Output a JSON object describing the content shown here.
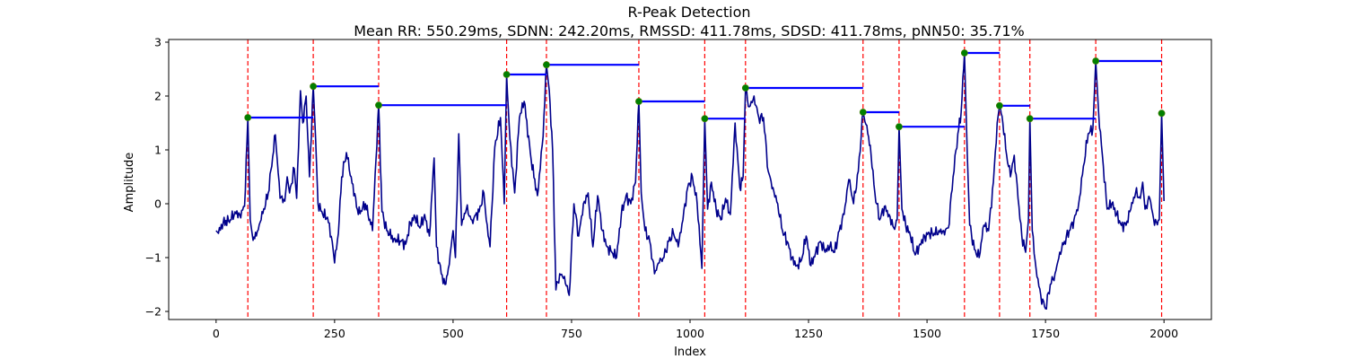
{
  "chart_data": {
    "type": "line",
    "title": "R-Peak Detection",
    "subtitle": "Mean RR: 550.29ms, SDNN: 242.20ms, RMSSD: 411.78ms, SDSD: 411.78ms, pNN50: 35.71%",
    "xlabel": "Index",
    "ylabel": "Amplitude",
    "xlim": [
      -100,
      2100
    ],
    "ylim": [
      -2.15,
      3.05
    ],
    "xticks": [
      0,
      250,
      500,
      750,
      1000,
      1250,
      1500,
      1750,
      2000
    ],
    "yticks": [
      -2,
      -1,
      0,
      1,
      2,
      3
    ],
    "grid": false,
    "colors": {
      "signal": "#00008b",
      "peak_lines": "#ff0000",
      "peak_markers": "#008000",
      "rr_segments": "#0000ff"
    },
    "signal_keypoints": [
      [
        0,
        -0.5
      ],
      [
        5,
        -0.55
      ],
      [
        15,
        -0.35
      ],
      [
        30,
        -0.3
      ],
      [
        40,
        -0.15
      ],
      [
        50,
        -0.2
      ],
      [
        60,
        -0.05
      ],
      [
        67,
        1.6
      ],
      [
        72,
        -0.3
      ],
      [
        78,
        -0.68
      ],
      [
        85,
        -0.6
      ],
      [
        95,
        -0.3
      ],
      [
        110,
        0.2
      ],
      [
        125,
        1.28
      ],
      [
        135,
        0.1
      ],
      [
        145,
        0.05
      ],
      [
        150,
        0.5
      ],
      [
        155,
        0.2
      ],
      [
        165,
        0.65
      ],
      [
        170,
        0.1
      ],
      [
        178,
        2.1
      ],
      [
        183,
        1.5
      ],
      [
        190,
        2.0
      ],
      [
        197,
        0.5
      ],
      [
        205,
        2.18
      ],
      [
        210,
        1.2
      ],
      [
        215,
        0.0
      ],
      [
        225,
        -0.2
      ],
      [
        235,
        -0.25
      ],
      [
        245,
        -0.7
      ],
      [
        250,
        -1.1
      ],
      [
        258,
        -0.55
      ],
      [
        265,
        0.5
      ],
      [
        275,
        0.95
      ],
      [
        285,
        0.5
      ],
      [
        300,
        -0.2
      ],
      [
        315,
        0.0
      ],
      [
        330,
        -0.5
      ],
      [
        343,
        1.83
      ],
      [
        350,
        -0.15
      ],
      [
        360,
        -0.5
      ],
      [
        375,
        -0.65
      ],
      [
        390,
        -0.7
      ],
      [
        400,
        -0.75
      ],
      [
        410,
        -0.35
      ],
      [
        420,
        -0.25
      ],
      [
        430,
        -0.45
      ],
      [
        440,
        -0.2
      ],
      [
        450,
        -0.6
      ],
      [
        460,
        0.85
      ],
      [
        465,
        -0.8
      ],
      [
        475,
        -1.3
      ],
      [
        483,
        -1.5
      ],
      [
        490,
        -1.2
      ],
      [
        500,
        -0.5
      ],
      [
        505,
        -1.0
      ],
      [
        512,
        1.3
      ],
      [
        518,
        -0.4
      ],
      [
        528,
        -0.1
      ],
      [
        540,
        -0.3
      ],
      [
        555,
        -0.15
      ],
      [
        565,
        0.2
      ],
      [
        570,
        -0.3
      ],
      [
        578,
        -0.8
      ],
      [
        588,
        1.05
      ],
      [
        600,
        1.6
      ],
      [
        608,
        0.0
      ],
      [
        613,
        2.4
      ],
      [
        620,
        1.2
      ],
      [
        630,
        0.2
      ],
      [
        640,
        1.6
      ],
      [
        650,
        1.9
      ],
      [
        665,
        0.8
      ],
      [
        678,
        0.15
      ],
      [
        690,
        1.25
      ],
      [
        697,
        2.58
      ],
      [
        703,
        2.1
      ],
      [
        710,
        1.0
      ],
      [
        717,
        -1.6
      ],
      [
        725,
        -1.3
      ],
      [
        735,
        -1.35
      ],
      [
        745,
        -1.7
      ],
      [
        755,
        0.0
      ],
      [
        765,
        -0.6
      ],
      [
        775,
        0.0
      ],
      [
        785,
        0.2
      ],
      [
        795,
        -0.8
      ],
      [
        805,
        0.15
      ],
      [
        815,
        -0.5
      ],
      [
        825,
        -0.8
      ],
      [
        835,
        -0.9
      ],
      [
        845,
        -1.0
      ],
      [
        855,
        -0.2
      ],
      [
        865,
        0.15
      ],
      [
        875,
        0.0
      ],
      [
        885,
        0.4
      ],
      [
        892,
        1.9
      ],
      [
        897,
        0.2
      ],
      [
        905,
        -0.5
      ],
      [
        915,
        -0.7
      ],
      [
        925,
        -1.3
      ],
      [
        935,
        -1.1
      ],
      [
        945,
        -1.0
      ],
      [
        955,
        -0.7
      ],
      [
        965,
        -0.55
      ],
      [
        975,
        -0.8
      ],
      [
        985,
        -0.3
      ],
      [
        995,
        0.3
      ],
      [
        1005,
        0.5
      ],
      [
        1015,
        0.0
      ],
      [
        1025,
        -1.2
      ],
      [
        1031,
        1.58
      ],
      [
        1037,
        -0.1
      ],
      [
        1045,
        0.4
      ],
      [
        1055,
        -0.1
      ],
      [
        1065,
        -0.3
      ],
      [
        1075,
        0.1
      ],
      [
        1085,
        -0.2
      ],
      [
        1095,
        1.5
      ],
      [
        1105,
        0.3
      ],
      [
        1112,
        0.5
      ],
      [
        1117,
        2.15
      ],
      [
        1125,
        1.8
      ],
      [
        1135,
        2.0
      ],
      [
        1145,
        1.6
      ],
      [
        1155,
        1.6
      ],
      [
        1165,
        0.6
      ],
      [
        1175,
        0.3
      ],
      [
        1185,
        0.0
      ],
      [
        1195,
        -0.5
      ],
      [
        1205,
        -0.7
      ],
      [
        1215,
        -1.0
      ],
      [
        1225,
        -1.15
      ],
      [
        1235,
        -1.05
      ],
      [
        1245,
        -0.6
      ],
      [
        1255,
        -1.15
      ],
      [
        1265,
        -0.9
      ],
      [
        1275,
        -0.7
      ],
      [
        1285,
        -0.9
      ],
      [
        1295,
        -0.8
      ],
      [
        1305,
        -0.9
      ],
      [
        1315,
        -0.5
      ],
      [
        1325,
        -0.2
      ],
      [
        1335,
        0.45
      ],
      [
        1345,
        0.0
      ],
      [
        1355,
        0.6
      ],
      [
        1365,
        1.7
      ],
      [
        1375,
        1.3
      ],
      [
        1382,
        0.9
      ],
      [
        1390,
        0.2
      ],
      [
        1400,
        -0.3
      ],
      [
        1410,
        -0.05
      ],
      [
        1420,
        -0.2
      ],
      [
        1430,
        -0.45
      ],
      [
        1437,
        -0.3
      ],
      [
        1441,
        1.43
      ],
      [
        1447,
        -0.1
      ],
      [
        1455,
        -0.4
      ],
      [
        1465,
        -0.6
      ],
      [
        1475,
        -0.95
      ],
      [
        1485,
        -0.75
      ],
      [
        1495,
        -0.6
      ],
      [
        1505,
        -0.55
      ],
      [
        1515,
        -0.55
      ],
      [
        1525,
        -0.5
      ],
      [
        1535,
        -0.5
      ],
      [
        1545,
        -0.45
      ],
      [
        1555,
        0.5
      ],
      [
        1565,
        1.3
      ],
      [
        1572,
        1.7
      ],
      [
        1579,
        2.8
      ],
      [
        1585,
        0.9
      ],
      [
        1590,
        -0.4
      ],
      [
        1600,
        -0.85
      ],
      [
        1610,
        -1.0
      ],
      [
        1620,
        -0.4
      ],
      [
        1630,
        -0.5
      ],
      [
        1640,
        0.4
      ],
      [
        1648,
        1.5
      ],
      [
        1653,
        1.82
      ],
      [
        1660,
        1.5
      ],
      [
        1668,
        0.9
      ],
      [
        1676,
        0.5
      ],
      [
        1684,
        0.9
      ],
      [
        1692,
        0.1
      ],
      [
        1700,
        -0.6
      ],
      [
        1708,
        -0.9
      ],
      [
        1714,
        -0.3
      ],
      [
        1717,
        1.58
      ],
      [
        1722,
        -0.5
      ],
      [
        1730,
        -1.2
      ],
      [
        1740,
        -1.7
      ],
      [
        1750,
        -1.95
      ],
      [
        1760,
        -1.5
      ],
      [
        1770,
        -1.3
      ],
      [
        1780,
        -0.9
      ],
      [
        1790,
        -0.7
      ],
      [
        1800,
        -0.5
      ],
      [
        1810,
        -0.3
      ],
      [
        1820,
        0.0
      ],
      [
        1830,
        0.7
      ],
      [
        1840,
        1.3
      ],
      [
        1850,
        1.4
      ],
      [
        1856,
        2.65
      ],
      [
        1862,
        1.7
      ],
      [
        1870,
        0.9
      ],
      [
        1880,
        -0.1
      ],
      [
        1890,
        0.0
      ],
      [
        1900,
        -0.2
      ],
      [
        1910,
        -0.4
      ],
      [
        1920,
        -0.4
      ],
      [
        1930,
        -0.1
      ],
      [
        1940,
        0.2
      ],
      [
        1950,
        0.1
      ],
      [
        1955,
        0.4
      ],
      [
        1960,
        -0.1
      ],
      [
        1970,
        0.1
      ],
      [
        1980,
        -0.4
      ],
      [
        1990,
        -0.3
      ],
      [
        1995,
        1.68
      ],
      [
        2000,
        0.05
      ]
    ],
    "r_peaks": [
      {
        "x": 67,
        "y": 1.6
      },
      {
        "x": 205,
        "y": 2.18
      },
      {
        "x": 343,
        "y": 1.83
      },
      {
        "x": 613,
        "y": 2.4
      },
      {
        "x": 697,
        "y": 2.58
      },
      {
        "x": 892,
        "y": 1.9
      },
      {
        "x": 1031,
        "y": 1.58
      },
      {
        "x": 1117,
        "y": 2.15
      },
      {
        "x": 1365,
        "y": 1.7
      },
      {
        "x": 1441,
        "y": 1.43
      },
      {
        "x": 1579,
        "y": 2.8
      },
      {
        "x": 1653,
        "y": 1.82
      },
      {
        "x": 1717,
        "y": 1.58
      },
      {
        "x": 1856,
        "y": 2.65
      },
      {
        "x": 1995,
        "y": 1.68
      }
    ],
    "rr_segments": [
      {
        "x_start": 67,
        "x_end": 205,
        "y": 1.6
      },
      {
        "x_start": 205,
        "x_end": 343,
        "y": 2.18
      },
      {
        "x_start": 343,
        "x_end": 613,
        "y": 1.83
      },
      {
        "x_start": 613,
        "x_end": 697,
        "y": 2.4
      },
      {
        "x_start": 697,
        "x_end": 892,
        "y": 2.58
      },
      {
        "x_start": 892,
        "x_end": 1031,
        "y": 1.9
      },
      {
        "x_start": 1031,
        "x_end": 1117,
        "y": 1.58
      },
      {
        "x_start": 1117,
        "x_end": 1365,
        "y": 2.15
      },
      {
        "x_start": 1365,
        "x_end": 1441,
        "y": 1.7
      },
      {
        "x_start": 1441,
        "x_end": 1579,
        "y": 1.43
      },
      {
        "x_start": 1579,
        "x_end": 1653,
        "y": 2.8
      },
      {
        "x_start": 1653,
        "x_end": 1717,
        "y": 1.82
      },
      {
        "x_start": 1717,
        "x_end": 1856,
        "y": 1.58
      },
      {
        "x_start": 1856,
        "x_end": 1995,
        "y": 2.65
      }
    ]
  }
}
